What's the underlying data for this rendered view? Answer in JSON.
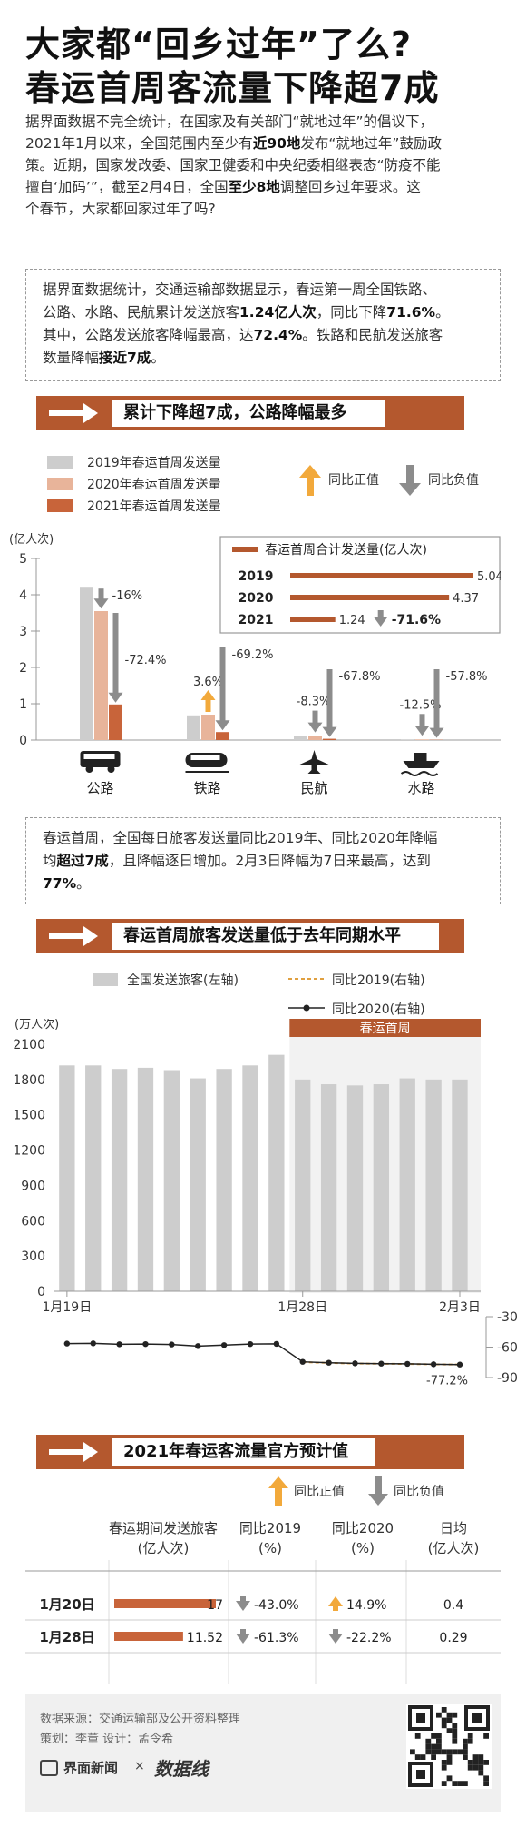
{
  "title": {
    "line1": "大家都“回乡过年”了么?",
    "line2": "春运首周客流量下降超7成"
  },
  "intro": {
    "line1": "据界面数据不完全统计，在国家及有关部门“就地过年”的倡议下，",
    "line2a": "2021年1月以来，全国范围内至少有",
    "line2b": "近90地",
    "line2c": "发布“就地过年”鼓励政",
    "line3": "策。近期，国家发改委、国家卫健委和中央纪委相继表态“防疫不能",
    "line4a": "擅自‘加码’”，截至2月4日，全国",
    "line4b": "至少8地",
    "line4c": "调整回乡过年要求。这",
    "line5": "个春节，大家都回家过年了吗?"
  },
  "note1": {
    "line1": "据界面数据统计，交通运输部数据显示，春运第一周全国铁路、",
    "line2a": "公路、水路、民航累计发送旅客",
    "line2b": "1.24亿人次",
    "line2c": "，同比下降",
    "line2d": "71.6%",
    "line2e": "。",
    "line3a": "其中，公路发送旅客降幅最高，达",
    "line3b": "72.4%",
    "line3c": "。铁路和民航发送旅客",
    "line4a": "数量降幅",
    "line4b": "接近7成",
    "line4c": "。"
  },
  "section1": {
    "label": "累计下降超7成，公路降幅最多"
  },
  "legend1": {
    "items": [
      "2019年春运首周发送量",
      "2020年春运首周发送量",
      "2021年春运首周发送量"
    ],
    "up_label": "同比正值",
    "down_label": "同比负值"
  },
  "colors": {
    "y2019": "#cdcdcd",
    "y2020": "#e8b49a",
    "y2021": "#c8643a",
    "accent": "#b4582e",
    "up": "#f2a93b",
    "down": "#8c8c8c",
    "orange_line": "#e0a040"
  },
  "chart_data": [
    {
      "type": "bar",
      "ylabel": "(亿人次)",
      "ylim": [
        0,
        5
      ],
      "yticks": [
        "0",
        "1",
        "2",
        "3",
        "4",
        "5"
      ],
      "categories": [
        "公路",
        "铁路",
        "民航",
        "水路"
      ],
      "series": [
        {
          "name": "2019年春运首周发送量",
          "values": [
            4.22,
            0.68,
            0.12,
            0.02
          ]
        },
        {
          "name": "2020年春运首周发送量",
          "values": [
            3.55,
            0.7,
            0.11,
            0.018
          ]
        },
        {
          "name": "2021年春运首周发送量",
          "values": [
            0.98,
            0.22,
            0.035,
            0.008
          ]
        }
      ],
      "change_2020": [
        "-16%",
        "3.6%",
        "-8.3%",
        "-12.5%"
      ],
      "change_2021": [
        "-72.4%",
        "-69.2%",
        "-67.8%",
        "-57.8%"
      ]
    },
    {
      "type": "bar",
      "title": "春运首周合计发送量(亿人次)",
      "categories": [
        "2019",
        "2020",
        "2021"
      ],
      "values": [
        5.04,
        4.37,
        1.24
      ],
      "value_labels": [
        "5.04",
        "4.37",
        "1.24"
      ],
      "change": "-71.6%"
    },
    {
      "type": "bar",
      "ylabel": "(万人次)",
      "ylim": [
        0,
        2100
      ],
      "yticks": [
        "2100",
        "1800",
        "1500",
        "1200",
        "900",
        "600",
        "300",
        "0"
      ],
      "x_labels": [
        "1月19日",
        "1月28日",
        "2月3日"
      ],
      "band_label": "春运首周",
      "series_name": "全国发送旅客(左轴)",
      "values": [
        1920,
        1920,
        1890,
        1900,
        1880,
        1810,
        1890,
        1920,
        2010,
        1800,
        1760,
        1750,
        1760,
        1810,
        1800,
        1800
      ]
    },
    {
      "type": "line",
      "ylim": [
        -90,
        -30
      ],
      "yticks": [
        "-30",
        "-60",
        "-90"
      ],
      "series": [
        {
          "name": "同比2019(右轴)",
          "values": [
            null,
            null,
            null,
            null,
            null,
            null,
            null,
            null,
            null,
            -74.8,
            -75.6,
            -76.2,
            -76.4,
            -76.6,
            -77.0,
            -77.2
          ]
        },
        {
          "name": "同比2020(右轴)",
          "values": [
            -56.5,
            -56.3,
            -57.2,
            -57.0,
            -57.4,
            -59.0,
            -58.0,
            -57.0,
            -56.8,
            -74.5,
            -75.4,
            -76.0,
            -76.3,
            -76.5,
            -76.9,
            -77.2
          ]
        }
      ],
      "end_label": "-77.2%"
    },
    {
      "type": "table",
      "title": "2021年春运客流量官方预计值",
      "columns": [
        "",
        "春运期间发送旅客\n(亿人次)",
        "同比2019\n(%)",
        "同比2020\n(%)",
        "日均\n(亿人次)"
      ],
      "rows": [
        {
          "date": "1月20日",
          "passengers": 17,
          "passengers_label": "17",
          "vs2019": "-43.0%",
          "vs2019_dir": "down",
          "vs2020": "14.9%",
          "vs2020_dir": "up",
          "daily": "0.4"
        },
        {
          "date": "1月28日",
          "passengers": 11.52,
          "passengers_label": "11.52",
          "vs2019": "-61.3%",
          "vs2019_dir": "down",
          "vs2020": "-22.2%",
          "vs2020_dir": "down",
          "daily": "0.29"
        }
      ]
    }
  ],
  "note2": {
    "line1": "春运首周，全国每日旅客发送量同比2019年、同比2020年降幅",
    "line2a": "均",
    "line2b": "超过7成",
    "line2c": "，且降幅逐日增加。2月3日降幅为7日来最高，达到",
    "line3": "77%",
    "line3b": "。"
  },
  "section2": {
    "label": "春运首周旅客发送量低于去年同期水平"
  },
  "legend2": {
    "bars": "全国发送旅客(左轴)",
    "l2019": "同比2019(右轴)",
    "l2020": "同比2020(右轴)"
  },
  "section3": {
    "label": "2021年春运客流量官方预计值"
  },
  "legend3": {
    "up_label": "同比正值",
    "down_label": "同比负值"
  },
  "footer": {
    "source": "数据来源：交通运输部及公开资料整理",
    "credits": "策划：李董  设计：孟令希",
    "brand": "界面新闻",
    "times": "×",
    "brand2": "数据线"
  }
}
